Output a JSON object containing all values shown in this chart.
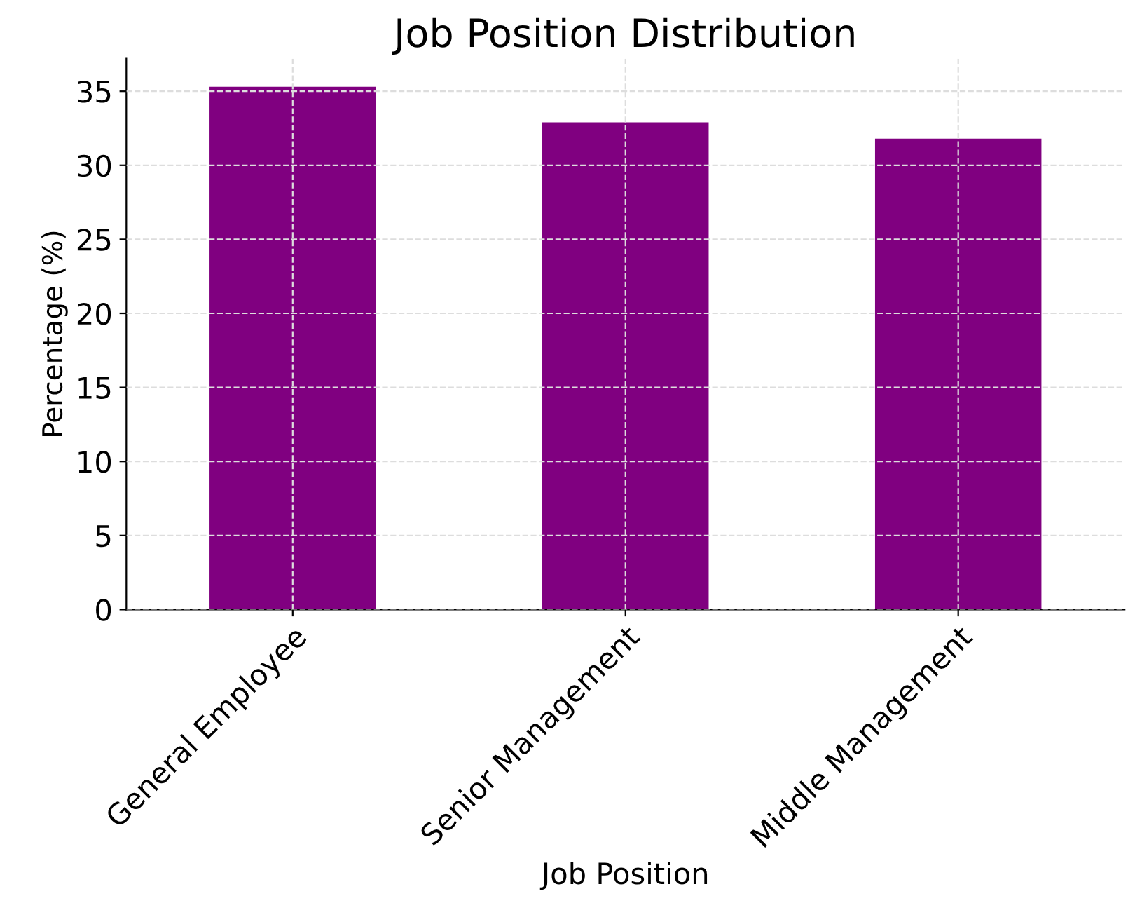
{
  "chart_data": {
    "type": "bar",
    "title": "Job Position Distribution",
    "xlabel": "Job Position",
    "ylabel": "Percentage (%)",
    "categories": [
      "General Employee",
      "Senior Management",
      "Middle Management"
    ],
    "values": [
      35.3,
      32.9,
      31.8
    ],
    "color": "#800080",
    "ylim": [
      0,
      37.2
    ],
    "yticks": [
      0,
      5,
      10,
      15,
      20,
      25,
      30,
      35
    ],
    "grid": true
  }
}
